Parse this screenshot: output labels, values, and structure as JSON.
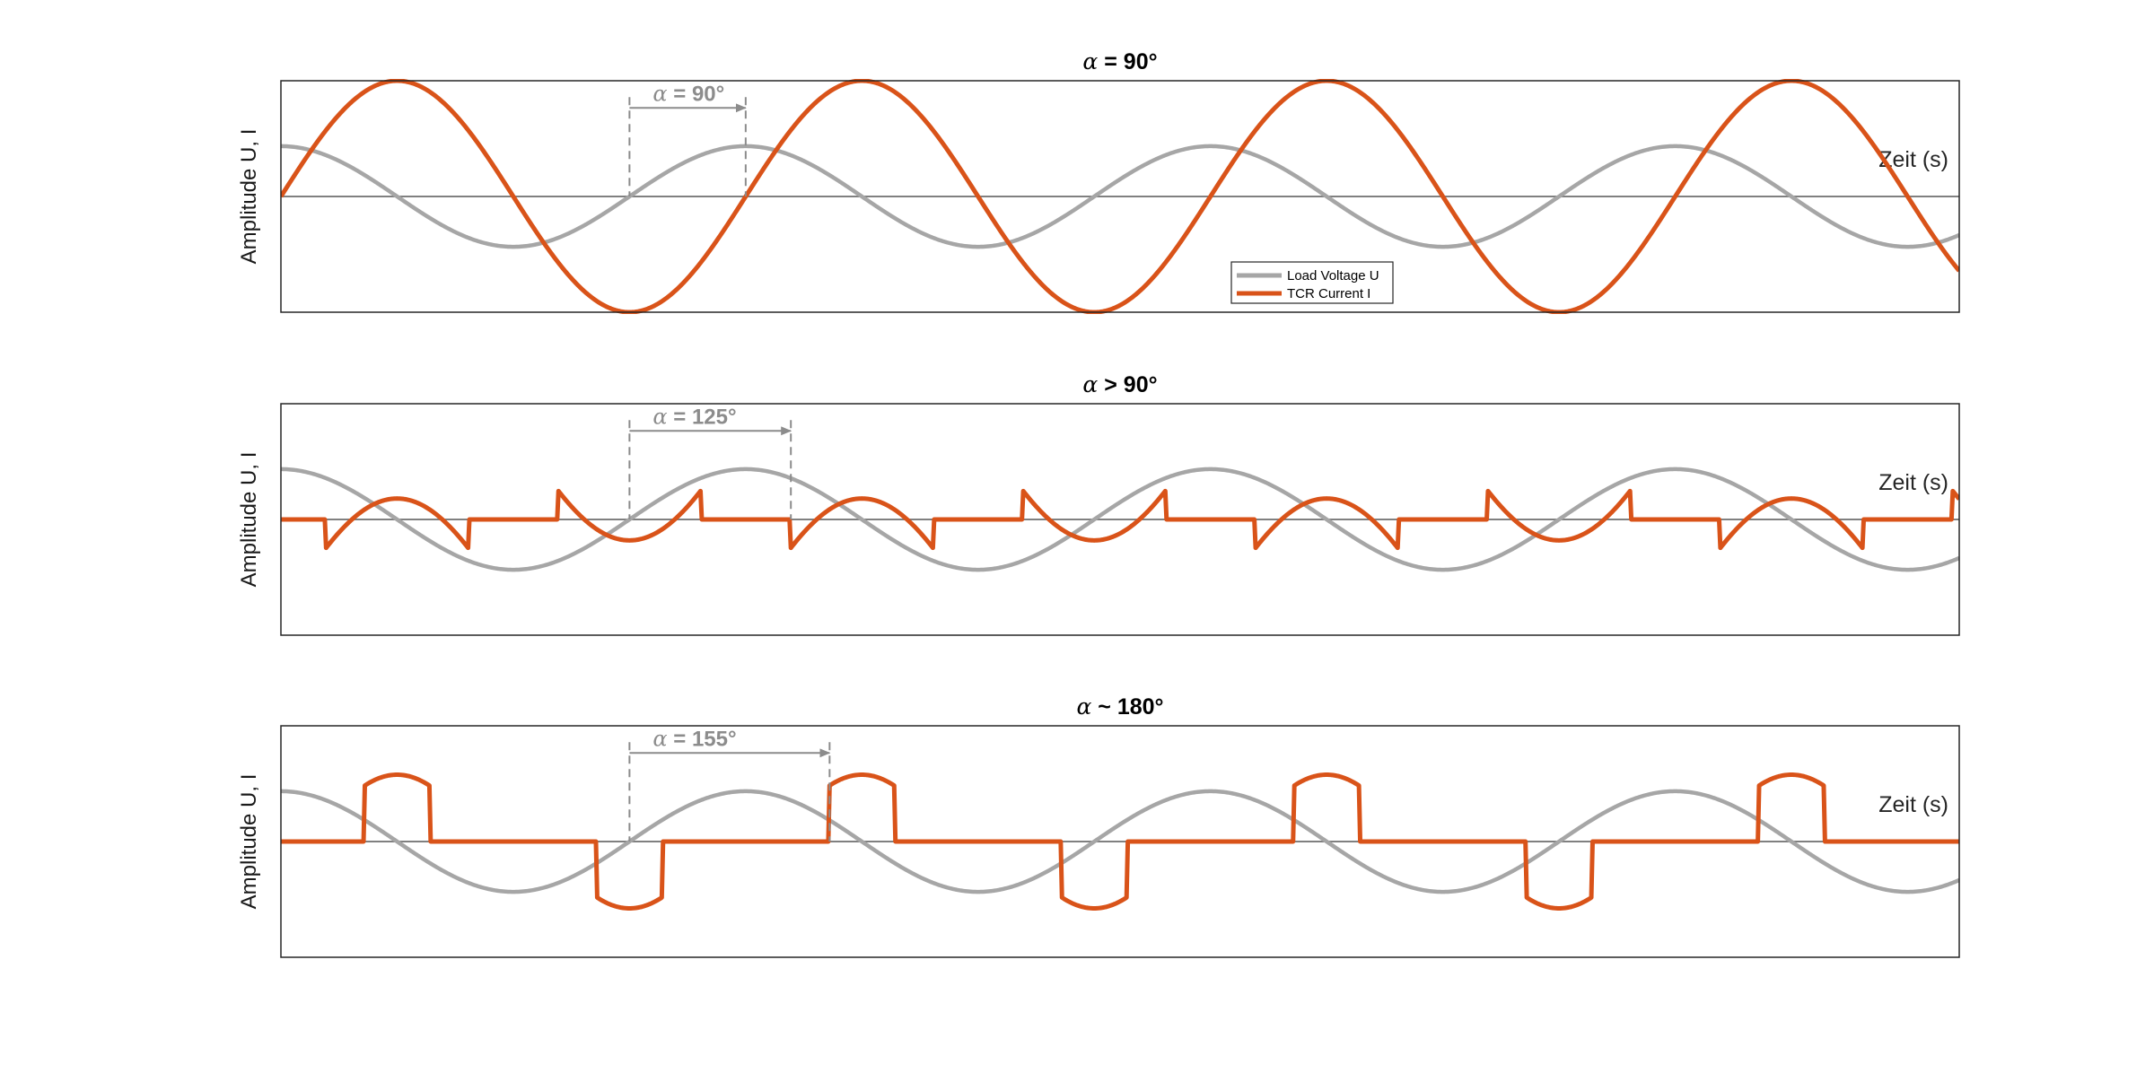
{
  "chart_data": [
    {
      "type": "line",
      "title": "α = 90°",
      "ylabel": "Amplitude U, I",
      "xlabel": "Zeit (s)",
      "alpha_deg": 90,
      "annotation": "α = 90°",
      "xlim": [
        0,
        1300
      ],
      "ylim": [
        -1.15,
        1.15
      ],
      "voltage_amplitude": 0.5,
      "current_amplitude": 1.15,
      "series": [
        {
          "name": "Load Voltage U",
          "color": "#a6a6a6",
          "function": "0.5*cos(x)",
          "x_range_deg": [
            0,
            1300
          ]
        },
        {
          "name": "TCR Current I",
          "color": "#d95319",
          "function": "1.15*sin(x), conduction from alpha to 360-alpha each half-cycle",
          "x_range_deg": [
            0,
            1300
          ]
        }
      ]
    },
    {
      "type": "line",
      "title": "α > 90°",
      "ylabel": "Amplitude U, I",
      "xlabel": "Zeit (s)",
      "alpha_deg": 125,
      "annotation": "α = 125°",
      "xlim": [
        0,
        1300
      ],
      "ylim": [
        -1.15,
        1.15
      ],
      "voltage_amplitude": 0.5,
      "current_amplitude": 1.15,
      "series": [
        {
          "name": "Load Voltage U",
          "color": "#a6a6a6",
          "function": "0.5*cos(x)",
          "x_range_deg": [
            0,
            1300
          ]
        },
        {
          "name": "TCR Current I",
          "color": "#d95319",
          "function": "1.15*(sin(x) - sin(alpha)) during conduction, 0 otherwise",
          "x_range_deg": [
            0,
            1300
          ]
        }
      ]
    },
    {
      "type": "line",
      "title": "α ~ 180°",
      "ylabel": "Amplitude U, I",
      "xlabel": "Zeit (s)",
      "alpha_deg": 155,
      "annotation": "α = 155°",
      "xlim": [
        0,
        1300
      ],
      "ylim": [
        -1.15,
        1.15
      ],
      "voltage_amplitude": 0.5,
      "current_amplitude": 1.15,
      "series": [
        {
          "name": "Load Voltage U",
          "color": "#a6a6a6",
          "function": "0.5*cos(x)",
          "x_range_deg": [
            0,
            1300
          ]
        },
        {
          "name": "TCR Current I",
          "color": "#d95319",
          "function": "1.15*(sin(x) - sin(alpha)) during conduction, 0 otherwise",
          "x_range_deg": [
            0,
            1300
          ]
        }
      ]
    }
  ],
  "legend": {
    "placement": "bottom-right of first panel",
    "items": [
      {
        "label": "Load Voltage U",
        "color": "#a6a6a6"
      },
      {
        "label": "TCR Current I",
        "color": "#d95319"
      }
    ]
  },
  "colors": {
    "voltage": "#a6a6a6",
    "current": "#d95319",
    "annotation": "#8c8c8c",
    "axis_box": "#262626",
    "zero_line": "#808080"
  },
  "grid": false
}
